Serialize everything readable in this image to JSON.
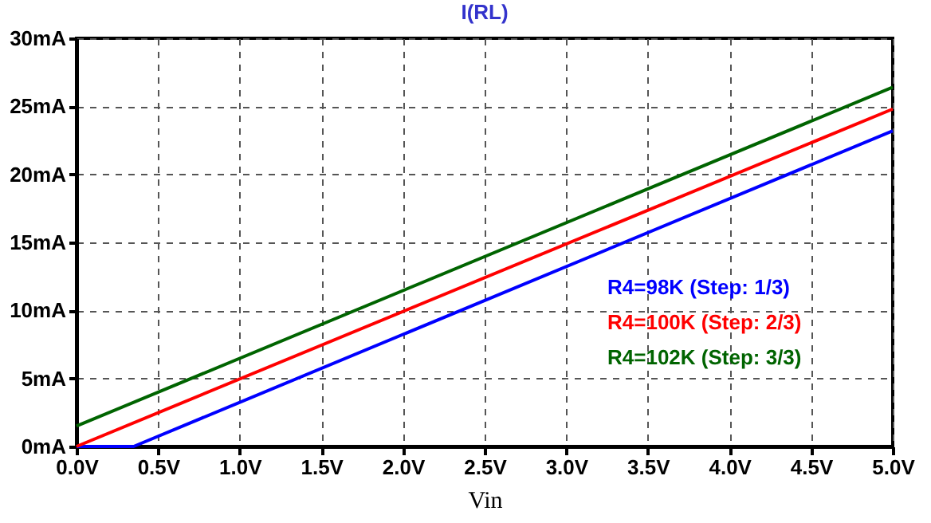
{
  "chart_data": {
    "type": "line",
    "title": "I(RL)",
    "xlabel": "Vin",
    "xlim": [
      0,
      5
    ],
    "ylim": [
      0,
      30
    ],
    "xticks": [
      {
        "value": 0,
        "label": "0.0V"
      },
      {
        "value": 0.5,
        "label": "0.5V"
      },
      {
        "value": 1,
        "label": "1.0V"
      },
      {
        "value": 1.5,
        "label": "1.5V"
      },
      {
        "value": 2,
        "label": "2.0V"
      },
      {
        "value": 2.5,
        "label": "2.5V"
      },
      {
        "value": 3,
        "label": "3.0V"
      },
      {
        "value": 3.5,
        "label": "3.5V"
      },
      {
        "value": 4,
        "label": "4.0V"
      },
      {
        "value": 4.5,
        "label": "4.5V"
      },
      {
        "value": 5,
        "label": "5.0V"
      }
    ],
    "yticks": [
      {
        "value": 0,
        "label": "0mA"
      },
      {
        "value": 5,
        "label": "5mA"
      },
      {
        "value": 10,
        "label": "10mA"
      },
      {
        "value": 15,
        "label": "15mA"
      },
      {
        "value": 20,
        "label": "20mA"
      },
      {
        "value": 25,
        "label": "25mA"
      },
      {
        "value": 30,
        "label": "30mA"
      }
    ],
    "series": [
      {
        "name": "R4=98K  (Step: 1/3)",
        "color": "#0000ff",
        "x": [
          0,
          0.35,
          5
        ],
        "values": [
          0,
          0,
          23.2
        ]
      },
      {
        "name": "R4=100K  (Step: 2/3)",
        "color": "#ff0000",
        "x": [
          0,
          5
        ],
        "values": [
          0,
          24.8
        ]
      },
      {
        "name": "R4=102K  (Step: 3/3)",
        "color": "#006400",
        "x": [
          0,
          5
        ],
        "values": [
          1.5,
          26.4
        ]
      }
    ],
    "grid": true,
    "legend": "right"
  }
}
